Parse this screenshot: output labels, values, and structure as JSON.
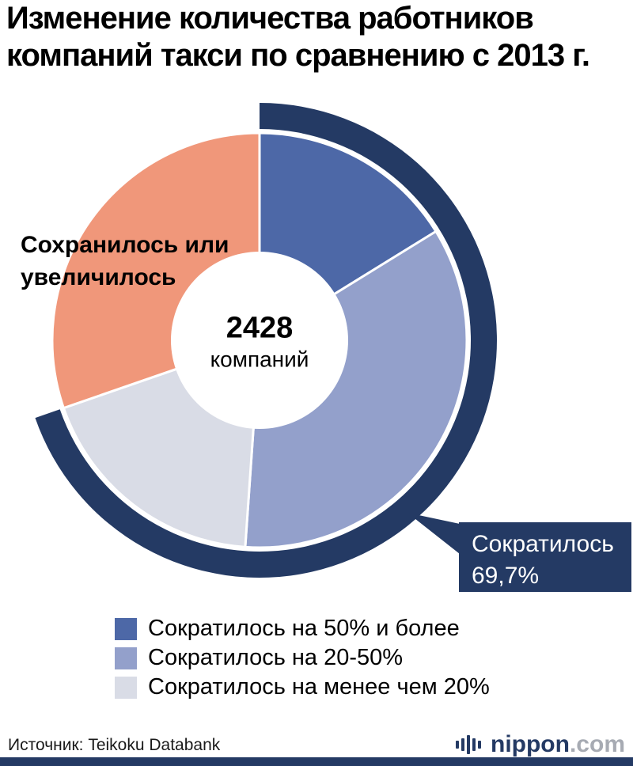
{
  "title": "Изменение количества работников\nкомпаний такси по сравнению с 2013 г.",
  "center": {
    "value": "2428",
    "unit": "компаний"
  },
  "side_label": "Сохранилось или\nувеличилось",
  "callout": {
    "line1": "Сократилось",
    "line2": "69,7%"
  },
  "source": "Источник: Teikoku Databank",
  "logo": {
    "name": "nippon",
    "tld": ".com"
  },
  "colors": {
    "navy": "#243a64",
    "decrease_50_plus": "#4d68a7",
    "decrease_20_50": "#93a0cb",
    "decrease_under_20": "#d9dce6",
    "kept_or_increased": "#f0977a",
    "logo_gray": "#a7abb3"
  },
  "chart_data": {
    "type": "pie",
    "title": "Изменение количества работников компаний такси по сравнению с 2013 г.",
    "hole": true,
    "center_label": {
      "value": "2428",
      "unit": "компаний"
    },
    "slices": [
      {
        "label": "Сократилось на 50% и более",
        "value": 16.2,
        "color": "#4d68a7"
      },
      {
        "label": "Сократилось на 20-50%",
        "value": 34.9,
        "color": "#93a0cb"
      },
      {
        "label": "Сократилось на менее чем 20%",
        "value": 18.6,
        "color": "#d9dce6"
      },
      {
        "label": "Сохранилось или увеличилось",
        "value": 30.3,
        "color": "#f0977a"
      }
    ],
    "outer_arc": {
      "label": "Сократилось",
      "value": 69.7,
      "color": "#243a64"
    },
    "legend_position": "bottom",
    "source": "Источник: Teikoku Databank"
  }
}
